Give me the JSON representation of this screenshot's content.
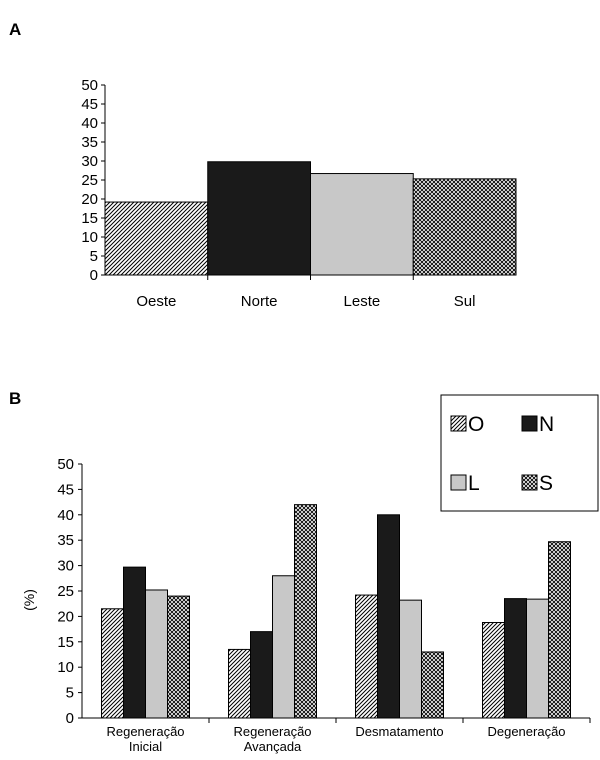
{
  "panels": {
    "a": "A",
    "b": "B"
  },
  "chart_data": [
    {
      "type": "bar",
      "categories": [
        "Oeste",
        "Norte",
        "Leste",
        "Sul"
      ],
      "values": [
        19.2,
        29.8,
        26.7,
        25.3
      ],
      "patterns": [
        "hatch",
        "solid",
        "gray",
        "checker"
      ],
      "ylim": [
        0,
        50
      ],
      "yticks": [
        0,
        5,
        10,
        15,
        20,
        25,
        30,
        35,
        40,
        45,
        50
      ]
    },
    {
      "type": "bar",
      "ylabel": "(%)",
      "categories": [
        [
          "Regeneração",
          "Inicial"
        ],
        [
          "Regeneração",
          "Avançada"
        ],
        [
          "Desmatamento"
        ],
        [
          "Degeneração"
        ]
      ],
      "series": [
        {
          "name": "O",
          "pattern": "hatch",
          "values": [
            21.5,
            13.5,
            24.2,
            18.8
          ]
        },
        {
          "name": "N",
          "pattern": "solid",
          "values": [
            29.7,
            17.0,
            40.0,
            23.5
          ]
        },
        {
          "name": "L",
          "pattern": "gray",
          "values": [
            25.2,
            28.0,
            23.2,
            23.4
          ]
        },
        {
          "name": "S",
          "pattern": "checker",
          "values": [
            24.0,
            42.0,
            13.0,
            34.7
          ]
        }
      ],
      "ylim": [
        0,
        50
      ],
      "yticks": [
        0,
        5,
        10,
        15,
        20,
        25,
        30,
        35,
        40,
        45,
        50
      ],
      "legend_position": "top-right"
    }
  ],
  "colors": {
    "solid": "#1a1a1a",
    "gray": "#c8c8c8",
    "line": "#000000"
  }
}
